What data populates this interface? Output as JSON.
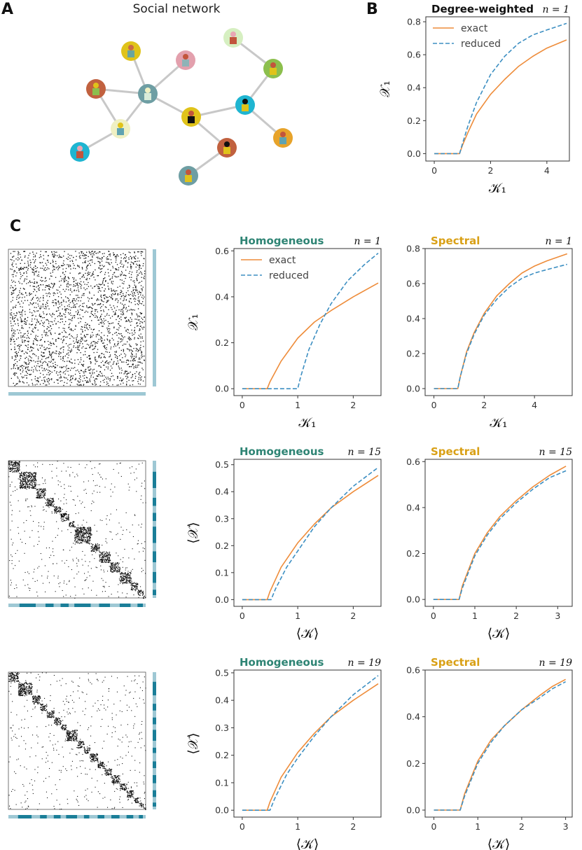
{
  "panel_labels": {
    "a": "A",
    "b": "B",
    "c": "C"
  },
  "network": {
    "title": "Social network",
    "edge_color": "#c8c8c8",
    "nodes": [
      {
        "id": "n1",
        "bg": "#e0c31a",
        "head": "#c96b46",
        "body": "#6aa5a0"
      },
      {
        "id": "n2",
        "bg": "#e3a0ad",
        "head": "#c2553c",
        "body": "#8fb3b7"
      },
      {
        "id": "n3",
        "bg": "#d6efc1",
        "head": "#e9a7b4",
        "body": "#c2553c"
      },
      {
        "id": "n4",
        "bg": "#c1613f",
        "head": "#e0c31a",
        "body": "#8cbf4d"
      },
      {
        "id": "n5",
        "bg": "#6e9ea3",
        "head": "#eff0c3",
        "body": "#d9ecd9"
      },
      {
        "id": "n6",
        "bg": "#8cbf4d",
        "head": "#c2553c",
        "body": "#e0c31a"
      },
      {
        "id": "n7",
        "bg": "#e0c31a",
        "head": "#c2553c",
        "body": "#111111"
      },
      {
        "id": "n8",
        "bg": "#1fb5d1",
        "head": "#111111",
        "body": "#e0c31a"
      },
      {
        "id": "n9",
        "bg": "#eff0c3",
        "head": "#e0c31a",
        "body": "#5fa3b1"
      },
      {
        "id": "n10",
        "bg": "#1fb5d1",
        "head": "#e9a7b4",
        "body": "#c2553c"
      },
      {
        "id": "n11",
        "bg": "#c1613f",
        "head": "#111111",
        "body": "#e0c31a"
      },
      {
        "id": "n12",
        "bg": "#e7a32a",
        "head": "#c2553c",
        "body": "#5fa3b1"
      },
      {
        "id": "n13",
        "bg": "#6e9ea3",
        "head": "#c2553c",
        "body": "#e0c31a"
      }
    ],
    "edges": [
      [
        "n1",
        "n5"
      ],
      [
        "n2",
        "n5"
      ],
      [
        "n4",
        "n5"
      ],
      [
        "n5",
        "n9"
      ],
      [
        "n4",
        "n9"
      ],
      [
        "n9",
        "n10"
      ],
      [
        "n5",
        "n7"
      ],
      [
        "n7",
        "n11"
      ],
      [
        "n7",
        "n8"
      ],
      [
        "n8",
        "n6"
      ],
      [
        "n6",
        "n3"
      ],
      [
        "n8",
        "n12"
      ],
      [
        "n11",
        "n13"
      ]
    ]
  },
  "colors": {
    "exact": "#ee8c3a",
    "reduced": "#3d8fc2",
    "homogeneous": "#2e8474",
    "spectral": "#d9a016",
    "band_light": "#9ec8d4",
    "band_dark": "#1a7e98"
  },
  "legend": {
    "exact": "exact",
    "reduced": "reduced"
  },
  "chart_data": [
    {
      "id": "B",
      "type": "line",
      "title": "Degree-weighted",
      "title_style": "plain",
      "n_label": "n = 1",
      "xlabel": "𝒦₁",
      "ylabel": "𝒳₁",
      "xlim": [
        -0.3,
        4.8
      ],
      "ylim": [
        -0.045,
        0.83
      ],
      "xticks": [
        0,
        2,
        4
      ],
      "yticks": [
        0.0,
        0.2,
        0.4,
        0.6,
        0.8
      ],
      "ytick_labels": [
        "0.0",
        "0.2",
        "0.4",
        "0.6",
        "0.8"
      ],
      "legend": true,
      "series": [
        {
          "name": "exact",
          "x": [
            0,
            0.9,
            1.0,
            1.2,
            1.5,
            2.0,
            2.5,
            3.0,
            3.5,
            4.0,
            4.7
          ],
          "y": [
            0,
            0,
            0.05,
            0.13,
            0.24,
            0.36,
            0.45,
            0.53,
            0.59,
            0.64,
            0.69
          ]
        },
        {
          "name": "reduced",
          "x": [
            0,
            0.9,
            1.0,
            1.2,
            1.5,
            2.0,
            2.5,
            3.0,
            3.5,
            4.0,
            4.7
          ],
          "y": [
            0,
            0,
            0.06,
            0.17,
            0.31,
            0.48,
            0.59,
            0.67,
            0.72,
            0.75,
            0.79
          ]
        }
      ]
    },
    {
      "id": "C1-hom",
      "type": "line",
      "title": "Homogeneous",
      "title_style": "homogeneous",
      "n_label": "n = 1",
      "xlabel": "𝒦₁",
      "ylabel": "𝒳₁",
      "xlim": [
        -0.15,
        2.5
      ],
      "ylim": [
        -0.03,
        0.61
      ],
      "xticks": [
        0,
        1,
        2
      ],
      "yticks": [
        0.0,
        0.2,
        0.4,
        0.6
      ],
      "ytick_labels": [
        "0.0",
        "0.2",
        "0.4",
        "0.6"
      ],
      "legend": true,
      "series": [
        {
          "name": "exact",
          "x": [
            0,
            0.45,
            0.5,
            0.7,
            1.0,
            1.3,
            1.6,
            2.0,
            2.45
          ],
          "y": [
            0,
            0,
            0.03,
            0.12,
            0.22,
            0.29,
            0.34,
            0.4,
            0.46
          ]
        },
        {
          "name": "reduced",
          "x": [
            0,
            1.0,
            1.05,
            1.2,
            1.4,
            1.6,
            1.9,
            2.2,
            2.45
          ],
          "y": [
            0,
            0,
            0.05,
            0.17,
            0.28,
            0.37,
            0.47,
            0.54,
            0.59
          ]
        }
      ]
    },
    {
      "id": "C1-spec",
      "type": "line",
      "title": "Spectral",
      "title_style": "spectral",
      "n_label": "n = 1",
      "xlabel": "𝒦₁",
      "ylabel": "",
      "xlim": [
        -0.35,
        5.5
      ],
      "ylim": [
        -0.04,
        0.8
      ],
      "xticks": [
        0,
        2,
        4
      ],
      "yticks": [
        0.0,
        0.2,
        0.4,
        0.6,
        0.8
      ],
      "ytick_labels": [
        "0.0",
        "0.2",
        "0.4",
        "0.6",
        "0.8"
      ],
      "legend": false,
      "series": [
        {
          "name": "exact",
          "x": [
            0,
            0.95,
            1.05,
            1.3,
            1.6,
            2.0,
            2.5,
            3.0,
            3.5,
            4.0,
            4.5,
            5.3
          ],
          "y": [
            0,
            0,
            0.07,
            0.21,
            0.32,
            0.43,
            0.53,
            0.6,
            0.66,
            0.7,
            0.73,
            0.77
          ]
        },
        {
          "name": "reduced",
          "x": [
            0,
            0.95,
            1.05,
            1.3,
            1.6,
            2.0,
            2.5,
            3.0,
            3.5,
            4.0,
            4.5,
            5.3
          ],
          "y": [
            0,
            0,
            0.07,
            0.2,
            0.31,
            0.42,
            0.51,
            0.58,
            0.63,
            0.66,
            0.68,
            0.71
          ]
        }
      ]
    },
    {
      "id": "C2-hom",
      "type": "line",
      "title": "Homogeneous",
      "title_style": "homogeneous",
      "n_label": "n = 15",
      "xlabel": "⟨𝒦⟩",
      "ylabel": "⟨𝒳⟩",
      "xlim": [
        -0.15,
        2.5
      ],
      "ylim": [
        -0.025,
        0.52
      ],
      "xticks": [
        0,
        1,
        2
      ],
      "yticks": [
        0.0,
        0.1,
        0.2,
        0.3,
        0.4,
        0.5
      ],
      "ytick_labels": [
        "0.0",
        "0.1",
        "0.2",
        "0.3",
        "0.4",
        "0.5"
      ],
      "legend": false,
      "series": [
        {
          "name": "exact",
          "x": [
            0,
            0.45,
            0.5,
            0.7,
            1.0,
            1.3,
            1.6,
            2.0,
            2.45
          ],
          "y": [
            0,
            0,
            0.03,
            0.12,
            0.21,
            0.28,
            0.34,
            0.4,
            0.46
          ]
        },
        {
          "name": "reduced",
          "x": [
            0,
            0.52,
            0.6,
            0.8,
            1.0,
            1.3,
            1.6,
            2.0,
            2.45
          ],
          "y": [
            0,
            0,
            0.04,
            0.12,
            0.18,
            0.27,
            0.34,
            0.42,
            0.49
          ]
        }
      ]
    },
    {
      "id": "C2-spec",
      "type": "line",
      "title": "Spectral",
      "title_style": "spectral",
      "n_label": "n = 15",
      "xlabel": "⟨𝒦⟩",
      "ylabel": "",
      "xlim": [
        -0.2,
        3.35
      ],
      "ylim": [
        -0.03,
        0.61
      ],
      "xticks": [
        0,
        1,
        2,
        3
      ],
      "yticks": [
        0.0,
        0.2,
        0.4,
        0.6
      ],
      "ytick_labels": [
        "0.0",
        "0.2",
        "0.4",
        "0.6"
      ],
      "legend": false,
      "series": [
        {
          "name": "exact",
          "x": [
            0,
            0.62,
            0.7,
            1.0,
            1.3,
            1.6,
            2.0,
            2.4,
            2.8,
            3.2
          ],
          "y": [
            0,
            0,
            0.06,
            0.2,
            0.29,
            0.36,
            0.43,
            0.49,
            0.54,
            0.58
          ]
        },
        {
          "name": "reduced",
          "x": [
            0,
            0.62,
            0.7,
            1.0,
            1.3,
            1.6,
            2.0,
            2.4,
            2.8,
            3.2
          ],
          "y": [
            0,
            0,
            0.05,
            0.19,
            0.28,
            0.35,
            0.42,
            0.48,
            0.53,
            0.56
          ]
        }
      ]
    },
    {
      "id": "C3-hom",
      "type": "line",
      "title": "Homogeneous",
      "title_style": "homogeneous",
      "n_label": "n = 19",
      "xlabel": "⟨𝒦⟩",
      "ylabel": "⟨𝒳⟩",
      "xlim": [
        -0.15,
        2.5
      ],
      "ylim": [
        -0.025,
        0.51
      ],
      "xticks": [
        0,
        1,
        2
      ],
      "yticks": [
        0.0,
        0.1,
        0.2,
        0.3,
        0.4,
        0.5
      ],
      "ytick_labels": [
        "0.0",
        "0.1",
        "0.2",
        "0.3",
        "0.4",
        "0.5"
      ],
      "legend": false,
      "series": [
        {
          "name": "exact",
          "x": [
            0,
            0.45,
            0.5,
            0.7,
            1.0,
            1.3,
            1.6,
            2.0,
            2.45
          ],
          "y": [
            0,
            0,
            0.03,
            0.12,
            0.21,
            0.28,
            0.34,
            0.4,
            0.46
          ]
        },
        {
          "name": "reduced",
          "x": [
            0,
            0.5,
            0.58,
            0.8,
            1.0,
            1.3,
            1.6,
            2.0,
            2.45
          ],
          "y": [
            0,
            0,
            0.04,
            0.13,
            0.19,
            0.27,
            0.34,
            0.42,
            0.49
          ]
        }
      ]
    },
    {
      "id": "C3-spec",
      "type": "line",
      "title": "Spectral",
      "title_style": "spectral",
      "n_label": "n = 19",
      "xlabel": "⟨𝒦⟩",
      "ylabel": "",
      "xlim": [
        -0.2,
        3.15
      ],
      "ylim": [
        -0.03,
        0.6
      ],
      "xticks": [
        0,
        1,
        2,
        3
      ],
      "yticks": [
        0.0,
        0.2,
        0.4,
        0.6
      ],
      "ytick_labels": [
        "0.0",
        "0.2",
        "0.4",
        "0.6"
      ],
      "legend": false,
      "series": [
        {
          "name": "exact",
          "x": [
            0,
            0.6,
            0.7,
            1.0,
            1.3,
            1.6,
            2.0,
            2.4,
            2.7,
            3.0
          ],
          "y": [
            0,
            0,
            0.07,
            0.21,
            0.3,
            0.36,
            0.43,
            0.49,
            0.53,
            0.56
          ]
        },
        {
          "name": "reduced",
          "x": [
            0,
            0.6,
            0.7,
            1.0,
            1.3,
            1.6,
            2.0,
            2.4,
            2.7,
            3.0
          ],
          "y": [
            0,
            0,
            0.06,
            0.2,
            0.29,
            0.36,
            0.43,
            0.48,
            0.52,
            0.55
          ]
        }
      ]
    }
  ],
  "matrices": [
    {
      "id": "m1",
      "communities": [
        1
      ]
    },
    {
      "id": "m2",
      "communities": [
        0.08,
        0.12,
        0.07,
        0.06,
        0.05,
        0.06,
        0.04,
        0.12,
        0.06,
        0.08,
        0.07,
        0.08,
        0.05,
        0.04,
        0.02
      ]
    },
    {
      "id": "m3",
      "communities": [
        0.07,
        0.1,
        0.06,
        0.05,
        0.05,
        0.05,
        0.04,
        0.08,
        0.05,
        0.04,
        0.06,
        0.05,
        0.05,
        0.06,
        0.05,
        0.05,
        0.04,
        0.03,
        0.02
      ]
    }
  ]
}
